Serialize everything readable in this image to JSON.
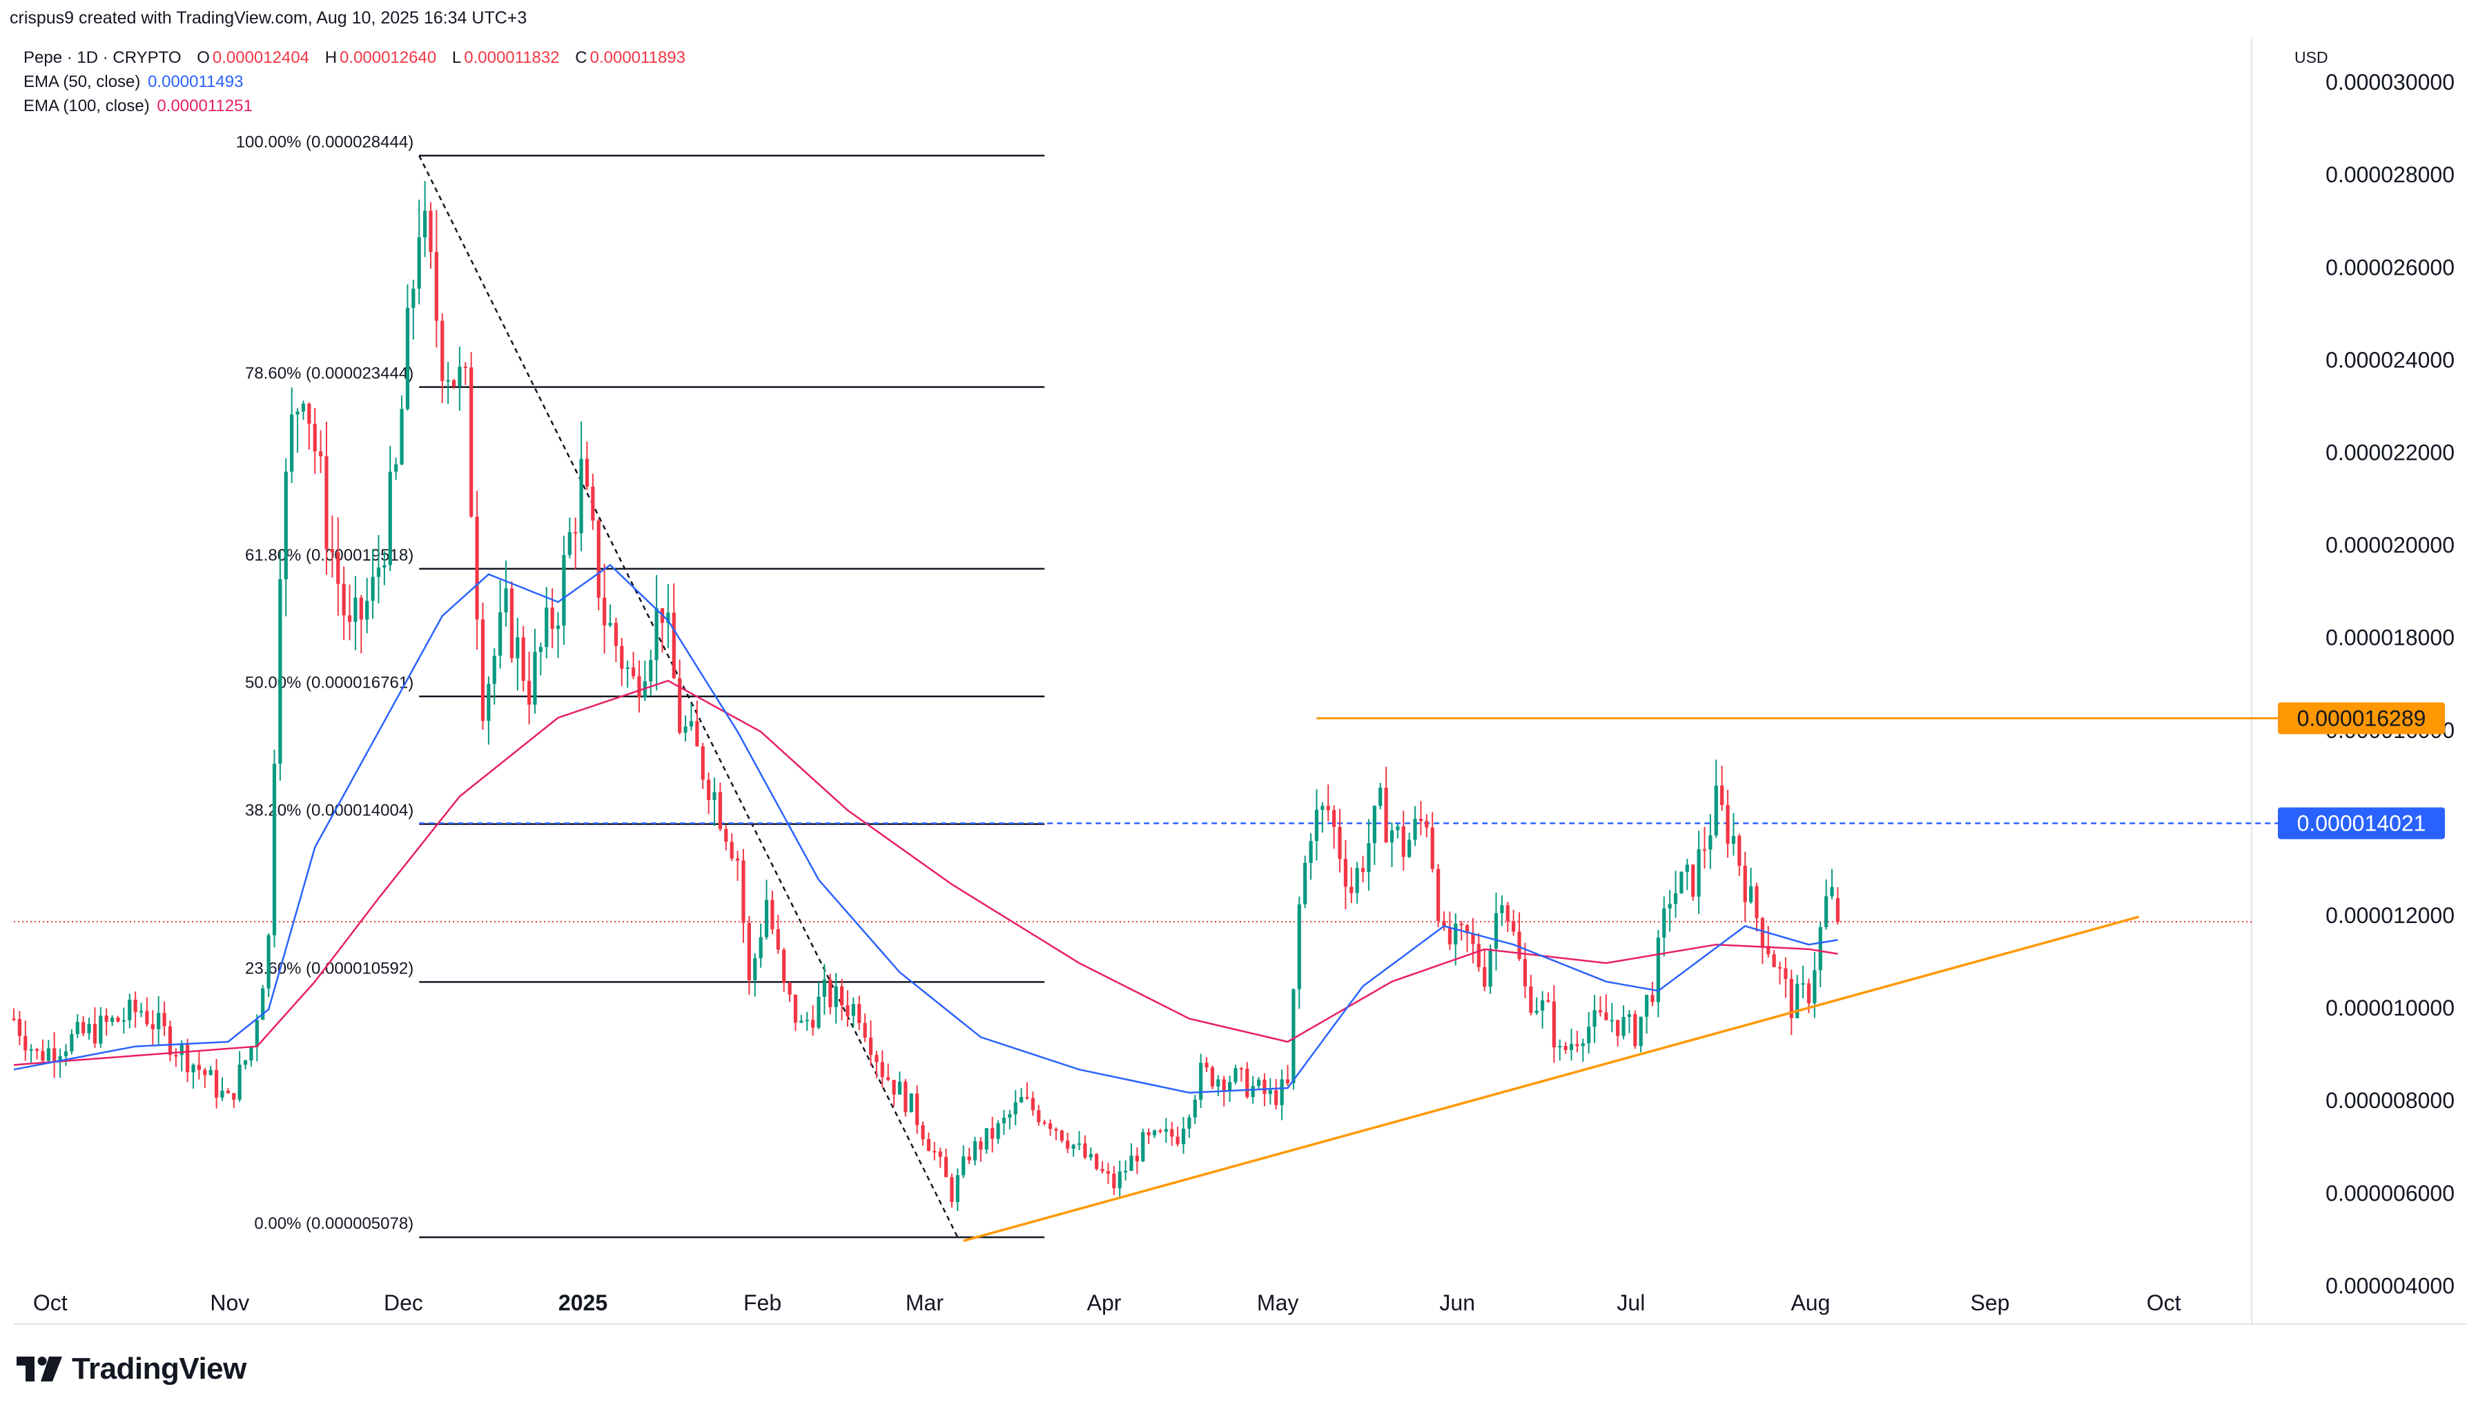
{
  "header": {
    "text": "crispus9 created with TradingView.com, Aug 10, 2025 16:34 UTC+3"
  },
  "legend": {
    "symbol": "Pepe · 1D · CRYPTO",
    "open_label": "O",
    "open": "0.000012404",
    "high_label": "H",
    "high": "0.000012640",
    "low_label": "L",
    "low": "0.000011832",
    "close_label": "C",
    "close": "0.000011893",
    "ema50_label": "EMA (50, close)",
    "ema50_value": "0.000011493",
    "ema100_label": "EMA (100, close)",
    "ema100_value": "0.000011251"
  },
  "currency": "USD",
  "logo_text": "TradingView",
  "colors": {
    "up": "#089981",
    "down": "#f23645",
    "ema50": "#2962ff",
    "ema100": "#e91e63",
    "trendline": "#ff9800",
    "blue_label": "#2962ff",
    "fib": "#131722"
  },
  "chart_data": {
    "type": "candlestick",
    "title": "Pepe · 1D · CRYPTO",
    "ylim": [
      3.2e-06,
      3.1e-05
    ],
    "y_ticks": [
      "0.000004000",
      "0.000006000",
      "0.000008000",
      "0.000010000",
      "0.000012000",
      "0.000016000",
      "0.000018000",
      "0.000020000",
      "0.000022000",
      "0.000024000",
      "0.000026000",
      "0.000028000",
      "0.000030000"
    ],
    "x_ticks": [
      {
        "label": "Oct",
        "date": "2024-10-01"
      },
      {
        "label": "Nov",
        "date": "2024-11-01"
      },
      {
        "label": "Dec",
        "date": "2024-12-01"
      },
      {
        "label": "2025",
        "date": "2025-01-01",
        "bold": true
      },
      {
        "label": "Feb",
        "date": "2025-02-01"
      },
      {
        "label": "Mar",
        "date": "2025-03-01"
      },
      {
        "label": "Apr",
        "date": "2025-04-01"
      },
      {
        "label": "May",
        "date": "2025-05-01"
      },
      {
        "label": "Jun",
        "date": "2025-06-01"
      },
      {
        "label": "Jul",
        "date": "2025-07-01"
      },
      {
        "label": "Aug",
        "date": "2025-08-01"
      },
      {
        "label": "Sep",
        "date": "2025-09-01"
      },
      {
        "label": "Oct",
        "date": "2025-10-01"
      }
    ],
    "x_range": [
      "2024-09-29",
      "2025-10-20"
    ],
    "last_price": 1.1893e-05,
    "price_labels": [
      {
        "label": "0.000016289",
        "value": 1.6289e-05,
        "color": "#ff9800"
      },
      {
        "label": "0.000014021",
        "value": 1.4021e-05,
        "color": "#2962ff"
      }
    ],
    "fib_levels": [
      {
        "label": "100.00% (0.000028444)",
        "value": 2.8444e-05
      },
      {
        "label": "78.60% (0.000023444)",
        "value": 2.3444e-05
      },
      {
        "label": "61.80% (0.000019518)",
        "value": 1.9518e-05
      },
      {
        "label": "50.00% (0.000016761)",
        "value": 1.6761e-05
      },
      {
        "label": "38.20% (0.000014004)",
        "value": 1.4004e-05
      },
      {
        "label": "23.60% (0.000010592)",
        "value": 1.0592e-05
      },
      {
        "label": "0.00% (0.000005078)",
        "value": 5.078e-06
      }
    ],
    "fib_range": {
      "start": "2024-12-08",
      "end": "2025-03-26"
    },
    "fib_diagonal": {
      "from": [
        "2024-12-08",
        2.8444e-05
      ],
      "to": [
        "2025-03-11",
        5.078e-06
      ]
    },
    "resistance": {
      "start": "2025-05-12",
      "end": "2025-10-20",
      "value": 1.6289e-05
    },
    "dashed_level": {
      "start": "2024-12-08",
      "end": "2025-10-20",
      "value": 1.4021e-05
    },
    "trendline": {
      "from": [
        "2025-03-12",
        5e-06
      ],
      "to": [
        "2025-10-01",
        1.2e-05
      ]
    },
    "anchors": [
      [
        "2024-09-29",
        9.8e-06
      ],
      [
        "2024-10-03",
        9e-06
      ],
      [
        "2024-10-08",
        9.3e-06
      ],
      [
        "2024-10-14",
        9.6e-06
      ],
      [
        "2024-10-21",
        1e-05
      ],
      [
        "2024-10-27",
        9.2e-06
      ],
      [
        "2024-11-01",
        8.6e-06
      ],
      [
        "2024-11-05",
        8e-06
      ],
      [
        "2024-11-09",
        9.2e-06
      ],
      [
        "2024-11-12",
        1.15e-05
      ],
      [
        "2024-11-14",
        2e-05
      ],
      [
        "2024-11-16",
        2.25e-05
      ],
      [
        "2024-11-18",
        2.38e-05
      ],
      [
        "2024-11-22",
        2.05e-05
      ],
      [
        "2024-11-26",
        1.8e-05
      ],
      [
        "2024-11-30",
        1.9e-05
      ],
      [
        "2024-12-04",
        2.15e-05
      ],
      [
        "2024-12-08",
        2.72e-05
      ],
      [
        "2024-12-12",
        2.43e-05
      ],
      [
        "2024-12-16",
        2.32e-05
      ],
      [
        "2024-12-19",
        1.68e-05
      ],
      [
        "2024-12-23",
        1.85e-05
      ],
      [
        "2024-12-27",
        1.7e-05
      ],
      [
        "2025-01-01",
        1.88e-05
      ],
      [
        "2025-01-05",
        2.15e-05
      ],
      [
        "2025-01-09",
        1.85e-05
      ],
      [
        "2025-01-14",
        1.7e-05
      ],
      [
        "2025-01-19",
        1.88e-05
      ],
      [
        "2025-01-22",
        1.62e-05
      ],
      [
        "2025-01-27",
        1.5e-05
      ],
      [
        "2025-02-01",
        1.33e-05
      ],
      [
        "2025-02-03",
        1.05e-05
      ],
      [
        "2025-02-06",
        1.24e-05
      ],
      [
        "2025-02-09",
        1.04e-05
      ],
      [
        "2025-02-12",
        9.6e-06
      ],
      [
        "2025-02-16",
        1.03e-05
      ],
      [
        "2025-02-22",
        1e-05
      ],
      [
        "2025-02-26",
        8.7e-06
      ],
      [
        "2025-03-03",
        7.9e-06
      ],
      [
        "2025-03-07",
        6.9e-06
      ],
      [
        "2025-03-10",
        6e-06
      ],
      [
        "2025-03-13",
        6.9e-06
      ],
      [
        "2025-03-18",
        7.4e-06
      ],
      [
        "2025-03-22",
        8e-06
      ],
      [
        "2025-03-27",
        7.6e-06
      ],
      [
        "2025-04-02",
        6.8e-06
      ],
      [
        "2025-04-07",
        6.2e-06
      ],
      [
        "2025-04-12",
        7.1e-06
      ],
      [
        "2025-04-18",
        7.3e-06
      ],
      [
        "2025-04-22",
        8.6e-06
      ],
      [
        "2025-04-28",
        8.5e-06
      ],
      [
        "2025-05-04",
        8.1e-06
      ],
      [
        "2025-05-07",
        8.3e-06
      ],
      [
        "2025-05-09",
        1.22e-05
      ],
      [
        "2025-05-11",
        1.4e-05
      ],
      [
        "2025-05-14",
        1.43e-05
      ],
      [
        "2025-05-18",
        1.26e-05
      ],
      [
        "2025-05-23",
        1.43e-05
      ],
      [
        "2025-05-27",
        1.35e-05
      ],
      [
        "2025-05-31",
        1.42e-05
      ],
      [
        "2025-06-03",
        1.14e-05
      ],
      [
        "2025-06-07",
        1.15e-05
      ],
      [
        "2025-06-10",
        1.08e-05
      ],
      [
        "2025-06-13",
        1.27e-05
      ],
      [
        "2025-06-17",
        1.04e-05
      ],
      [
        "2025-06-21",
        9.9e-06
      ],
      [
        "2025-06-23",
        9e-06
      ],
      [
        "2025-06-27",
        9.6e-06
      ],
      [
        "2025-07-02",
        9.8e-06
      ],
      [
        "2025-07-06",
        9.5e-06
      ],
      [
        "2025-07-09",
        1.05e-05
      ],
      [
        "2025-07-12",
        1.25e-05
      ],
      [
        "2025-07-16",
        1.28e-05
      ],
      [
        "2025-07-20",
        1.44e-05
      ],
      [
        "2025-07-23",
        1.37e-05
      ],
      [
        "2025-07-26",
        1.23e-05
      ],
      [
        "2025-07-29",
        1.14e-05
      ],
      [
        "2025-08-02",
        1.01e-05
      ],
      [
        "2025-08-05",
        1.04e-05
      ],
      [
        "2025-08-08",
        1.23e-05
      ],
      [
        "2025-08-09",
        1.24e-05
      ],
      [
        "2025-08-10",
        1.189e-05
      ]
    ],
    "ema50_points": [
      [
        "2024-09-29",
        8.7e-06
      ],
      [
        "2024-10-20",
        9.2e-06
      ],
      [
        "2024-11-05",
        9.3e-06
      ],
      [
        "2024-11-12",
        1e-05
      ],
      [
        "2024-11-20",
        1.35e-05
      ],
      [
        "2024-12-01",
        1.6e-05
      ],
      [
        "2024-12-12",
        1.85e-05
      ],
      [
        "2024-12-20",
        1.94e-05
      ],
      [
        "2025-01-01",
        1.88e-05
      ],
      [
        "2025-01-10",
        1.96e-05
      ],
      [
        "2025-01-20",
        1.84e-05
      ],
      [
        "2025-02-01",
        1.6e-05
      ],
      [
        "2025-02-15",
        1.28e-05
      ],
      [
        "2025-03-01",
        1.08e-05
      ],
      [
        "2025-03-15",
        9.4e-06
      ],
      [
        "2025-04-01",
        8.7e-06
      ],
      [
        "2025-04-20",
        8.2e-06
      ],
      [
        "2025-05-07",
        8.3e-06
      ],
      [
        "2025-05-20",
        1.05e-05
      ],
      [
        "2025-06-03",
        1.18e-05
      ],
      [
        "2025-06-15",
        1.14e-05
      ],
      [
        "2025-07-01",
        1.06e-05
      ],
      [
        "2025-07-10",
        1.04e-05
      ],
      [
        "2025-07-25",
        1.18e-05
      ],
      [
        "2025-08-05",
        1.14e-05
      ],
      [
        "2025-08-10",
        1.15e-05
      ]
    ],
    "ema100_points": [
      [
        "2024-09-29",
        8.8e-06
      ],
      [
        "2024-10-20",
        9e-06
      ],
      [
        "2024-11-10",
        9.2e-06
      ],
      [
        "2024-11-20",
        1.06e-05
      ],
      [
        "2024-12-01",
        1.24e-05
      ],
      [
        "2024-12-15",
        1.46e-05
      ],
      [
        "2025-01-01",
        1.63e-05
      ],
      [
        "2025-01-20",
        1.71e-05
      ],
      [
        "2025-02-05",
        1.6e-05
      ],
      [
        "2025-02-20",
        1.43e-05
      ],
      [
        "2025-03-10",
        1.27e-05
      ],
      [
        "2025-04-01",
        1.1e-05
      ],
      [
        "2025-04-20",
        9.8e-06
      ],
      [
        "2025-05-07",
        9.3e-06
      ],
      [
        "2025-05-25",
        1.06e-05
      ],
      [
        "2025-06-10",
        1.13e-05
      ],
      [
        "2025-07-01",
        1.1e-05
      ],
      [
        "2025-07-20",
        1.14e-05
      ],
      [
        "2025-08-05",
        1.13e-05
      ],
      [
        "2025-08-10",
        1.12e-05
      ]
    ]
  }
}
